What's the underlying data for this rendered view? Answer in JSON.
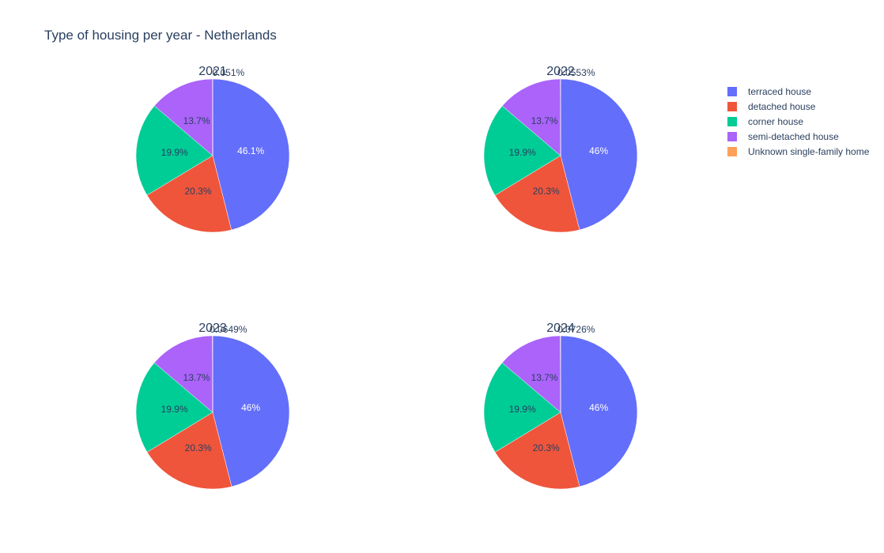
{
  "chart_data": {
    "type": "pie",
    "title": "Type of housing per year - Netherlands",
    "categories": [
      "terraced house",
      "detached house",
      "corner house",
      "semi-detached house",
      "Unknown single-family home"
    ],
    "colors": [
      "#636efa",
      "#EF553B",
      "#00cc96",
      "#ab63fa",
      "#FFA15A"
    ],
    "legend_position": "top-right",
    "subplots": [
      {
        "title": "2021",
        "values": [
          46.1,
          20.3,
          19.9,
          13.7,
          0.051
        ],
        "labels": [
          "46.1%",
          "20.3%",
          "19.9%",
          "13.7%",
          "0.051%"
        ]
      },
      {
        "title": "2022",
        "values": [
          46.0,
          20.3,
          19.9,
          13.7,
          0.0553
        ],
        "labels": [
          "46%",
          "20.3%",
          "19.9%",
          "13.7%",
          "0.0553%"
        ]
      },
      {
        "title": "2023",
        "values": [
          46.0,
          20.3,
          19.9,
          13.7,
          0.0649
        ],
        "labels": [
          "46%",
          "20.3%",
          "19.9%",
          "13.7%",
          "0.0649%"
        ]
      },
      {
        "title": "2024",
        "values": [
          46.0,
          20.3,
          19.9,
          13.7,
          0.0726
        ],
        "labels": [
          "46%",
          "20.3%",
          "19.9%",
          "13.7%",
          "0.0726%"
        ]
      }
    ]
  }
}
